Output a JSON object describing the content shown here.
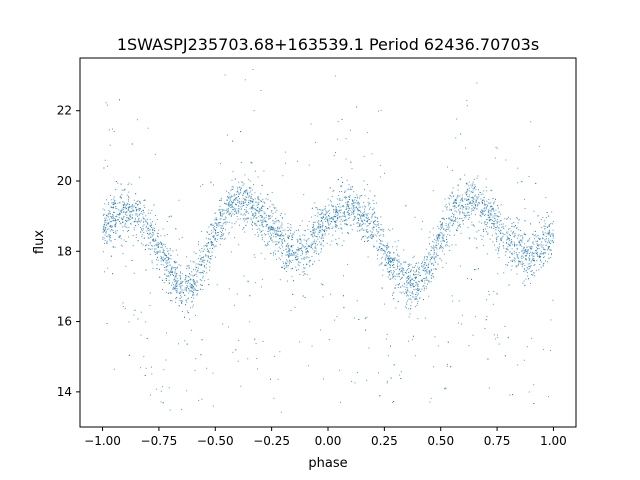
{
  "chart_data": {
    "type": "scatter",
    "title": "1SWASPJ235703.68+163539.1 Period 62436.70703s",
    "xlabel": "phase",
    "ylabel": "flux",
    "xlim": [
      -1.1,
      1.1
    ],
    "ylim": [
      13.0,
      23.5
    ],
    "x_ticks": [
      -1.0,
      -0.75,
      -0.5,
      -0.25,
      0.0,
      0.25,
      0.5,
      0.75,
      1.0
    ],
    "x_tick_labels": [
      "−1.00",
      "−0.75",
      "−0.50",
      "−0.25",
      "0.00",
      "0.25",
      "0.50",
      "0.75",
      "1.00"
    ],
    "y_ticks": [
      14,
      16,
      18,
      20,
      22
    ],
    "y_tick_labels": [
      "14",
      "16",
      "18",
      "20",
      "22"
    ],
    "grid": false,
    "legend": "none",
    "marker_color": "#1f77b4",
    "series": [
      {
        "phase": [
          -1.0,
          -0.95,
          -0.9,
          -0.85,
          -0.8,
          -0.75,
          -0.7,
          -0.65,
          -0.6,
          -0.55,
          -0.5,
          -0.45,
          -0.4,
          -0.35,
          -0.3,
          -0.25,
          -0.2,
          -0.15,
          -0.1,
          -0.05,
          0.0,
          0.05,
          0.1,
          0.15,
          0.2,
          0.25,
          0.3,
          0.35,
          0.4,
          0.45,
          0.5,
          0.55,
          0.6,
          0.65,
          0.7,
          0.75,
          0.8,
          0.85,
          0.9,
          0.95,
          1.0
        ],
        "flux_median": [
          18.6,
          18.9,
          19.1,
          19.0,
          18.7,
          18.0,
          17.5,
          17.0,
          17.0,
          17.7,
          18.5,
          19.2,
          19.4,
          19.3,
          19.0,
          18.6,
          18.2,
          17.9,
          18.0,
          18.5,
          18.9,
          19.1,
          19.2,
          19.0,
          18.7,
          18.0,
          17.5,
          17.1,
          17.0,
          17.6,
          18.4,
          19.1,
          19.3,
          19.4,
          19.1,
          18.7,
          18.3,
          18.0,
          17.9,
          18.2,
          18.4
        ],
        "scatter_sigma": 0.35
      }
    ]
  }
}
